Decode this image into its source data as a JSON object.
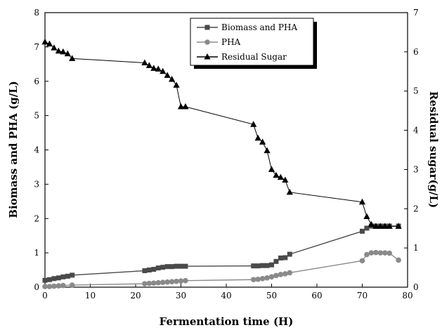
{
  "chart_data": {
    "type": "line",
    "xlabel": "Fermentation time (H)",
    "ylabel": "Biomass and PHA (g/L)",
    "y2label": "Residual sugar(g/L)",
    "xlim": [
      0,
      80
    ],
    "ylim": [
      0,
      8
    ],
    "y2lim": [
      0,
      7
    ],
    "xticks": [
      0,
      10,
      20,
      30,
      40,
      50,
      60,
      70,
      80
    ],
    "yticks": [
      0,
      1,
      2,
      3,
      4,
      5,
      6,
      7,
      8
    ],
    "y2ticks": [
      0,
      1,
      2,
      3,
      4,
      5,
      6,
      7
    ],
    "grid": false,
    "legend_position": "top-center",
    "series": [
      {
        "name": "Biomass and PHA",
        "axis": "left",
        "marker": "square",
        "color": "#4a4a4a",
        "x": [
          0,
          1,
          2,
          3,
          4,
          5,
          6,
          22,
          23,
          24,
          25,
          26,
          27,
          28,
          29,
          30,
          31,
          46,
          47,
          48,
          49,
          50,
          51,
          52,
          53,
          54,
          70,
          71,
          72,
          73,
          74,
          75,
          76,
          78
        ],
        "y": [
          0.2,
          0.22,
          0.25,
          0.27,
          0.3,
          0.32,
          0.35,
          0.48,
          0.5,
          0.52,
          0.56,
          0.58,
          0.6,
          0.6,
          0.61,
          0.61,
          0.61,
          0.62,
          0.62,
          0.63,
          0.63,
          0.65,
          0.75,
          0.85,
          0.86,
          0.96,
          1.63,
          1.72,
          1.78,
          1.78,
          1.78,
          1.78,
          1.78,
          1.78
        ]
      },
      {
        "name": "PHA",
        "axis": "left",
        "marker": "circle",
        "color": "#8a8a8a",
        "x": [
          0,
          1,
          2,
          3,
          4,
          6,
          22,
          23,
          24,
          25,
          26,
          27,
          28,
          29,
          30,
          31,
          46,
          47,
          48,
          49,
          50,
          51,
          52,
          53,
          54,
          70,
          71,
          72,
          73,
          74,
          75,
          76,
          78
        ],
        "y": [
          0.02,
          0.02,
          0.03,
          0.04,
          0.05,
          0.06,
          0.1,
          0.11,
          0.12,
          0.13,
          0.14,
          0.15,
          0.16,
          0.17,
          0.18,
          0.19,
          0.22,
          0.23,
          0.25,
          0.27,
          0.3,
          0.34,
          0.37,
          0.39,
          0.42,
          0.77,
          0.95,
          1.0,
          1.01,
          1.0,
          1.0,
          0.99,
          0.79
        ]
      },
      {
        "name": "Residual Sugar",
        "axis": "right",
        "marker": "triangle",
        "color": "#000000",
        "x": [
          0,
          1,
          2,
          3,
          4,
          5,
          6,
          22,
          23,
          24,
          25,
          26,
          27,
          28,
          29,
          30,
          31,
          46,
          47,
          48,
          49,
          50,
          51,
          52,
          53,
          54,
          70,
          71,
          72,
          73,
          74,
          75,
          76,
          78
        ],
        "y": [
          6.25,
          6.2,
          6.1,
          6.02,
          6.0,
          5.95,
          5.83,
          5.72,
          5.65,
          5.58,
          5.56,
          5.5,
          5.4,
          5.3,
          5.15,
          4.6,
          4.6,
          4.15,
          3.8,
          3.7,
          3.48,
          3.0,
          2.85,
          2.8,
          2.73,
          2.42,
          2.17,
          1.8,
          1.6,
          1.55,
          1.55,
          1.55,
          1.55,
          1.55
        ]
      }
    ]
  }
}
